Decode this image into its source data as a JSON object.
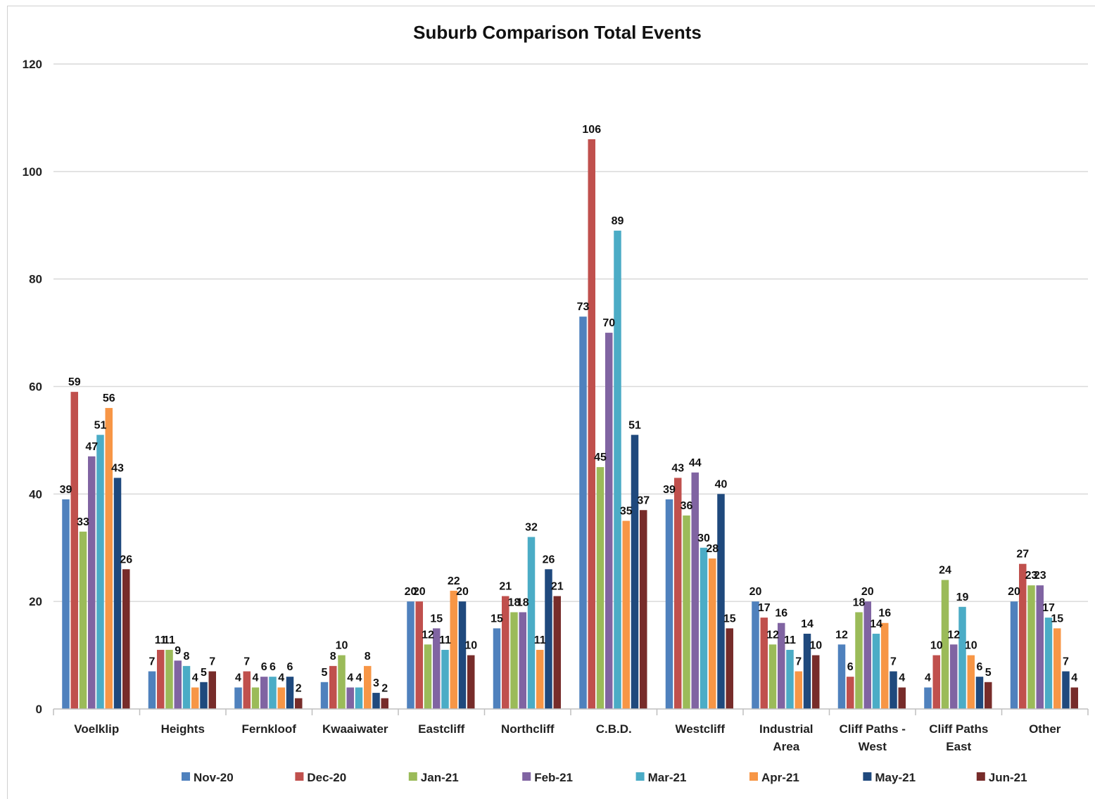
{
  "chart_data": {
    "type": "bar",
    "title": "Suburb Comparison Total Events",
    "xlabel": "",
    "ylabel": "",
    "ylim": [
      0,
      120
    ],
    "yticks": [
      0,
      20,
      40,
      60,
      80,
      100,
      120
    ],
    "grid": true,
    "legend_position": "bottom",
    "categories": [
      [
        "Voelklip"
      ],
      [
        "Heights"
      ],
      [
        "Fernkloof"
      ],
      [
        "Kwaaiwater"
      ],
      [
        "Eastcliff"
      ],
      [
        "Northcliff"
      ],
      [
        "C.B.D."
      ],
      [
        "Westcliff"
      ],
      [
        "Industrial",
        "Area"
      ],
      [
        "Cliff Paths -",
        "West"
      ],
      [
        "Cliff Paths",
        "East"
      ],
      [
        "Other"
      ]
    ],
    "series": [
      {
        "name": "Nov-20",
        "color": "#4F81BD",
        "values": [
          39,
          7,
          4,
          5,
          20,
          15,
          73,
          39,
          20,
          12,
          4,
          20
        ]
      },
      {
        "name": "Dec-20",
        "color": "#C0504D",
        "values": [
          59,
          11,
          7,
          8,
          20,
          21,
          106,
          43,
          17,
          6,
          10,
          27
        ]
      },
      {
        "name": "Jan-21",
        "color": "#9BBB59",
        "values": [
          33,
          11,
          4,
          10,
          12,
          18,
          45,
          36,
          12,
          18,
          24,
          23
        ]
      },
      {
        "name": "Feb-21",
        "color": "#8064A2",
        "values": [
          47,
          9,
          6,
          4,
          15,
          18,
          70,
          44,
          16,
          20,
          12,
          23
        ]
      },
      {
        "name": "Mar-21",
        "color": "#4BACC6",
        "values": [
          51,
          8,
          6,
          4,
          11,
          32,
          89,
          30,
          11,
          14,
          19,
          17
        ]
      },
      {
        "name": "Apr-21",
        "color": "#F79646",
        "values": [
          56,
          4,
          4,
          8,
          22,
          11,
          35,
          28,
          7,
          16,
          10,
          15
        ]
      },
      {
        "name": "May-21",
        "color": "#1F497D",
        "values": [
          43,
          5,
          6,
          3,
          20,
          26,
          51,
          40,
          14,
          7,
          6,
          7
        ]
      },
      {
        "name": "Jun-21",
        "color": "#772C2A",
        "values": [
          26,
          7,
          2,
          2,
          10,
          21,
          37,
          15,
          10,
          4,
          5,
          4
        ]
      }
    ]
  }
}
